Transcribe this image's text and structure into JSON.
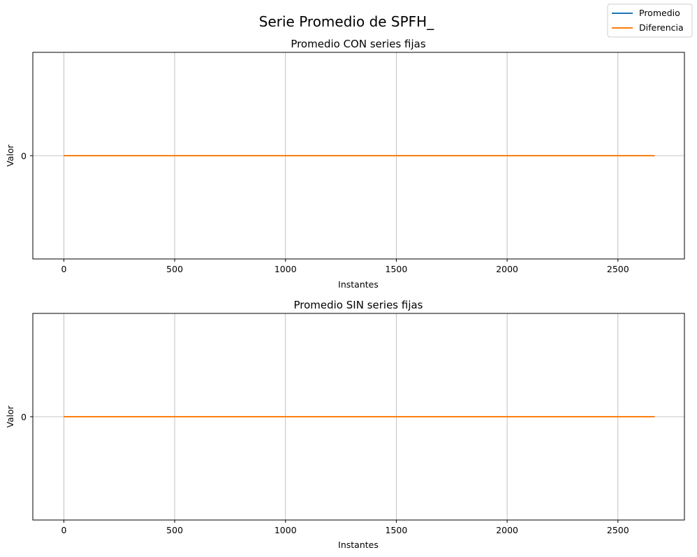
{
  "figure": {
    "title": "Serie Promedio de SPFH_"
  },
  "legend": {
    "placement": "top-right",
    "entries": [
      {
        "name": "Promedio",
        "color": "#1f77b4"
      },
      {
        "name": "Diferencia",
        "color": "#ff7f0e"
      }
    ]
  },
  "chart_data": [
    {
      "type": "line",
      "title": "Promedio CON series fijas",
      "xlabel": "Instantes",
      "ylabel": "Valor",
      "xlim": [
        -140,
        2800
      ],
      "ylim": [
        -0.055,
        0.055
      ],
      "xticks": [
        0,
        500,
        1000,
        1500,
        2000,
        2500
      ],
      "xtick_labels": [
        "0",
        "500",
        "1000",
        "1500",
        "2000",
        "2500"
      ],
      "yticks": [
        0
      ],
      "ytick_labels": [
        "0"
      ],
      "grid": true,
      "series": [
        {
          "name": "Promedio",
          "color": "#1f77b4",
          "x": [
            0,
            2665
          ],
          "y": [
            0,
            0
          ]
        },
        {
          "name": "Diferencia",
          "color": "#ff7f0e",
          "x": [
            0,
            2665
          ],
          "y": [
            0,
            0
          ]
        }
      ]
    },
    {
      "type": "line",
      "title": "Promedio SIN series fijas",
      "xlabel": "Instantes",
      "ylabel": "Valor",
      "xlim": [
        -140,
        2800
      ],
      "ylim": [
        -0.055,
        0.055
      ],
      "xticks": [
        0,
        500,
        1000,
        1500,
        2000,
        2500
      ],
      "xtick_labels": [
        "0",
        "500",
        "1000",
        "1500",
        "2000",
        "2500"
      ],
      "yticks": [
        0
      ],
      "ytick_labels": [
        "0"
      ],
      "grid": true,
      "series": [
        {
          "name": "Promedio",
          "color": "#1f77b4",
          "x": [
            0,
            2665
          ],
          "y": [
            0,
            0
          ]
        },
        {
          "name": "Diferencia",
          "color": "#ff7f0e",
          "x": [
            0,
            2665
          ],
          "y": [
            0,
            0
          ]
        }
      ]
    }
  ]
}
